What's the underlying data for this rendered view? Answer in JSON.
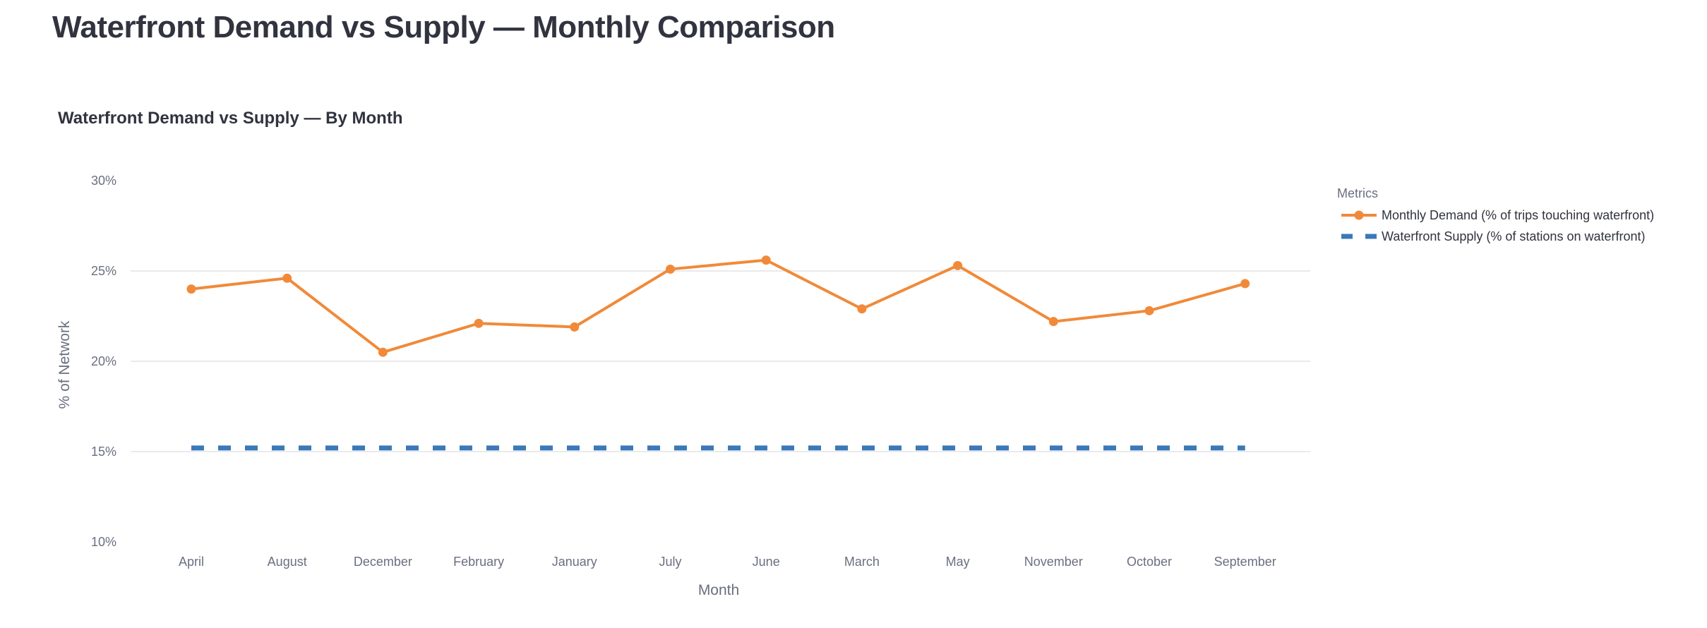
{
  "page": {
    "title": "Waterfront Demand vs Supply — Monthly Comparison"
  },
  "chart_data": {
    "type": "line",
    "title": "Waterfront Demand vs Supply — By Month",
    "xlabel": "Month",
    "ylabel": "% of Network",
    "ylim": [
      10,
      30
    ],
    "yticks": [
      10,
      15,
      20,
      25,
      30
    ],
    "ytick_labels": [
      "10%",
      "15%",
      "20%",
      "25%",
      "30%"
    ],
    "grid": true,
    "legend": {
      "title": "Metrics",
      "placement": "top-right"
    },
    "categories": [
      "April",
      "August",
      "December",
      "February",
      "January",
      "July",
      "June",
      "March",
      "May",
      "November",
      "October",
      "September"
    ],
    "series": [
      {
        "name": "Monthly Demand (% of trips touching waterfront)",
        "style": "solid-markers",
        "color": "#f08a3a",
        "values": [
          24.0,
          24.6,
          20.5,
          22.1,
          21.9,
          25.1,
          25.6,
          22.9,
          25.3,
          22.2,
          22.8,
          24.3
        ]
      },
      {
        "name": "Waterfront Supply (% of stations on waterfront)",
        "style": "dashed",
        "color": "#3b78b8",
        "values": [
          15.2,
          15.2,
          15.2,
          15.2,
          15.2,
          15.2,
          15.2,
          15.2,
          15.2,
          15.2,
          15.2,
          15.2
        ]
      }
    ]
  }
}
